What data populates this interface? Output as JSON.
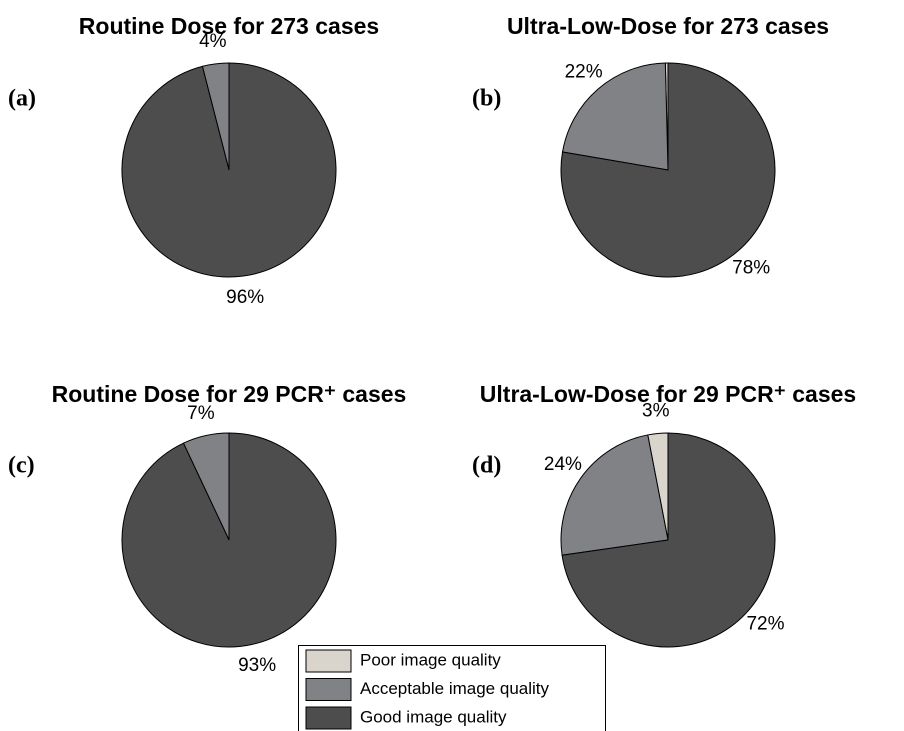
{
  "chart_data": [
    {
      "type": "pie",
      "title": "Routine Dose for 273 cases",
      "panel_label": "(a)",
      "categories": [
        "Poor image quality",
        "Acceptable image quality",
        "Good image quality"
      ],
      "values": [
        0,
        4,
        96
      ],
      "value_labels": [
        null,
        "4%",
        "96%"
      ],
      "colors": [
        "#d9d5cc",
        "#808285",
        "#4d4d4d"
      ]
    },
    {
      "type": "pie",
      "title": "Ultra-Low-Dose for 273 cases",
      "panel_label": "(b)",
      "categories": [
        "Poor image quality",
        "Acceptable image quality",
        "Good image quality"
      ],
      "values": [
        0.4,
        22,
        78
      ],
      "value_labels": [
        null,
        "22%",
        "78%"
      ],
      "colors": [
        "#d9d5cc",
        "#808285",
        "#4d4d4d"
      ]
    },
    {
      "type": "pie",
      "title": "Routine Dose for 29 PCR⁺ cases",
      "panel_label": "(c)",
      "categories": [
        "Poor image quality",
        "Acceptable image quality",
        "Good image quality"
      ],
      "values": [
        0,
        7,
        93
      ],
      "value_labels": [
        null,
        "7%",
        "93%"
      ],
      "colors": [
        "#d9d5cc",
        "#808285",
        "#4d4d4d"
      ]
    },
    {
      "type": "pie",
      "title": "Ultra-Low-Dose for 29 PCR⁺ cases",
      "panel_label": "(d)",
      "categories": [
        "Poor image quality",
        "Acceptable image quality",
        "Good image quality"
      ],
      "values": [
        3,
        24,
        72
      ],
      "value_labels": [
        "3%",
        "24%",
        "72%"
      ],
      "colors": [
        "#d9d5cc",
        "#808285",
        "#4d4d4d"
      ]
    }
  ]
}
